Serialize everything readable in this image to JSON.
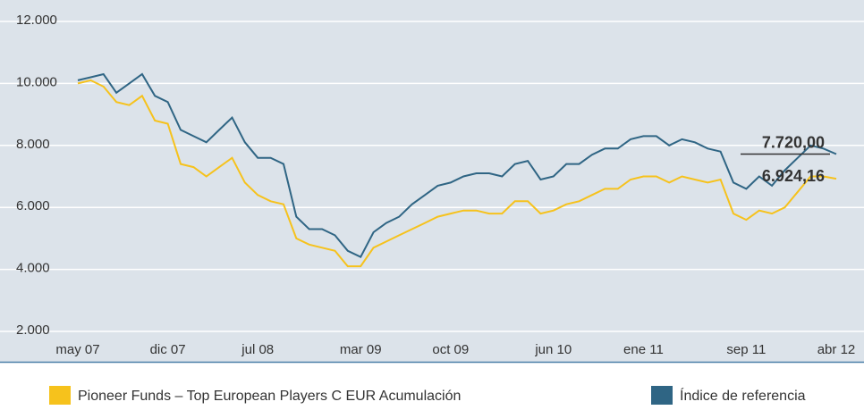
{
  "chart_data": {
    "type": "line",
    "categories": [
      "may 07",
      null,
      null,
      null,
      null,
      null,
      null,
      "dic 07",
      null,
      null,
      null,
      null,
      null,
      null,
      "jul 08",
      null,
      null,
      null,
      null,
      null,
      null,
      null,
      "mar 09",
      null,
      null,
      null,
      null,
      null,
      null,
      "oct 09",
      null,
      null,
      null,
      null,
      null,
      null,
      null,
      "jun 10",
      null,
      null,
      null,
      null,
      null,
      null,
      "ene 11",
      null,
      null,
      null,
      null,
      null,
      null,
      null,
      "sep 11",
      null,
      null,
      null,
      null,
      null,
      null,
      "abr 12"
    ],
    "series": [
      {
        "name": "Pioneer Funds – Top European Players  C EUR Acumulación",
        "color": "#f6c21c",
        "values": [
          10000,
          10100,
          9900,
          9400,
          9300,
          9600,
          8800,
          8700,
          7400,
          7300,
          7000,
          7300,
          7600,
          6800,
          6400,
          6200,
          6100,
          5000,
          4800,
          4700,
          4600,
          4100,
          4100,
          4700,
          4900,
          5100,
          5300,
          5500,
          5700,
          5800,
          5900,
          5900,
          5800,
          5800,
          6200,
          6200,
          5800,
          5900,
          6100,
          6200,
          6400,
          6600,
          6600,
          6900,
          7000,
          7000,
          6800,
          7000,
          6900,
          6800,
          6900,
          5800,
          5600,
          5900,
          5800,
          6000,
          6500,
          7000,
          7000,
          6924.16
        ],
        "value_labels": [
          null,
          null,
          null,
          null,
          null,
          null,
          null,
          null,
          null,
          null,
          null,
          null,
          null,
          null,
          null,
          null,
          null,
          null,
          null,
          null,
          null,
          null,
          null,
          null,
          null,
          null,
          null,
          null,
          null,
          null,
          null,
          null,
          null,
          null,
          null,
          null,
          null,
          null,
          null,
          null,
          null,
          null,
          null,
          null,
          null,
          null,
          null,
          null,
          null,
          null,
          null,
          null,
          null,
          null,
          null,
          null,
          null,
          null,
          null,
          "6.924,16"
        ]
      },
      {
        "name": "Índice de referencia",
        "color": "#2f6584",
        "values": [
          10100,
          10200,
          10300,
          9700,
          10000,
          10300,
          9600,
          9400,
          8500,
          8300,
          8100,
          8500,
          8900,
          8100,
          7600,
          7600,
          7400,
          5700,
          5300,
          5300,
          5100,
          4600,
          4400,
          5200,
          5500,
          5700,
          6100,
          6400,
          6700,
          6800,
          7000,
          7100,
          7100,
          7000,
          7400,
          7500,
          6900,
          7000,
          7400,
          7400,
          7700,
          7900,
          7900,
          8200,
          8300,
          8300,
          8000,
          8200,
          8100,
          7900,
          7800,
          6800,
          6600,
          7000,
          6700,
          7200,
          7600,
          8000,
          7900,
          7720
        ],
        "value_labels": [
          null,
          null,
          null,
          null,
          null,
          null,
          null,
          null,
          null,
          null,
          null,
          null,
          null,
          null,
          null,
          null,
          null,
          null,
          null,
          null,
          null,
          null,
          null,
          null,
          null,
          null,
          null,
          null,
          null,
          null,
          null,
          null,
          null,
          null,
          null,
          null,
          null,
          null,
          null,
          null,
          null,
          null,
          null,
          null,
          null,
          null,
          null,
          null,
          null,
          null,
          null,
          null,
          null,
          null,
          null,
          null,
          null,
          null,
          null,
          "7.720,00"
        ]
      }
    ],
    "ylim": [
      2000,
      12000
    ],
    "yticks": [
      {
        "value": 2000,
        "label": "2.000"
      },
      {
        "value": 4000,
        "label": "4.000"
      },
      {
        "value": 6000,
        "label": "6.000"
      },
      {
        "value": 8000,
        "label": "8.000"
      },
      {
        "value": 10000,
        "label": "10.000"
      },
      {
        "value": 12000,
        "label": "12.000"
      }
    ],
    "grid": true,
    "legend": "bottom"
  }
}
